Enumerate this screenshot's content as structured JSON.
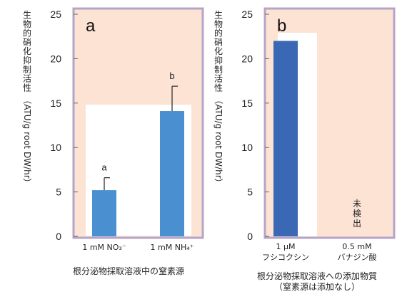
{
  "chart_data": [
    {
      "type": "bar",
      "panel_label": "a",
      "ylabel": "生物的硝化抑制活性（ATU/g root DW/hr）",
      "ylim": [
        0,
        25
      ],
      "yticks": [
        0,
        5,
        10,
        15,
        20,
        25
      ],
      "categories": [
        "1 mM NO₃⁻",
        "1 mM NH₄⁺"
      ],
      "values": [
        5.2,
        14.1
      ],
      "errors": [
        1.4,
        2.8
      ],
      "sig_labels": [
        "a",
        "b"
      ],
      "xlabel": "根分泌物採取溶液中の窒素源",
      "colors": {
        "bar": "#4a8fd0",
        "panel_bg": "#fde3d4",
        "plot_area": "#ffffff",
        "frame": "#b4a4c8"
      }
    },
    {
      "type": "bar",
      "panel_label": "b",
      "ylabel": "生物的硝化抑制活性（ATU/g root DW/hr）",
      "ylim": [
        0,
        25
      ],
      "yticks": [
        0,
        5,
        10,
        15,
        20,
        25
      ],
      "categories": [
        "1 μM\nフシコクシン",
        "0.5 mM\nバナジン酸"
      ],
      "values": [
        22.0,
        0
      ],
      "errors": [
        0,
        0
      ],
      "bar_annotations": [
        "",
        "未\n検\n出"
      ],
      "xlabel": "根分泌物採取溶液への添加物質\n（窒素源は添加なし）",
      "colors": {
        "bar": "#3a68b4",
        "panel_bg": "#fde3d4",
        "plot_area": "#ffffff",
        "frame": "#b4a4c8"
      }
    }
  ]
}
